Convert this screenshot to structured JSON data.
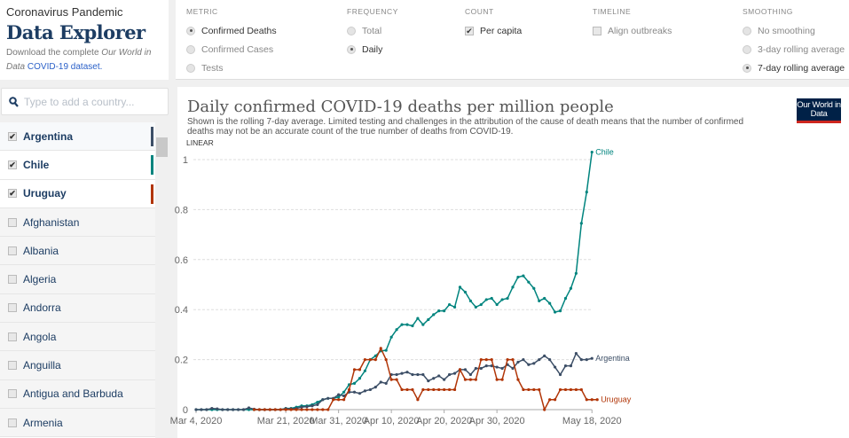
{
  "header": {
    "pretitle": "Coronavirus Pandemic",
    "title": "Data Explorer",
    "download_prefix": "Download the complete ",
    "download_italic": "Our World in Data",
    "download_link": "COVID-19 dataset."
  },
  "controls": {
    "metric": {
      "label": "METRIC",
      "options": [
        "Confirmed Deaths",
        "Confirmed Cases",
        "Tests"
      ],
      "selected": "Confirmed Deaths"
    },
    "frequency": {
      "label": "FREQUENCY",
      "options": [
        "Total",
        "Daily"
      ],
      "selected": "Daily"
    },
    "count": {
      "label": "COUNT",
      "option": "Per capita",
      "checked": true
    },
    "timeline": {
      "label": "TIMELINE",
      "option": "Align outbreaks",
      "checked": false
    },
    "smoothing": {
      "label": "SMOOTHING",
      "options": [
        "No smoothing",
        "3-day rolling average",
        "7-day rolling average"
      ],
      "selected": "7-day rolling average"
    }
  },
  "search": {
    "placeholder": "Type to add a country...",
    "icon": "search-icon"
  },
  "countries": [
    {
      "name": "Argentina",
      "checked": true,
      "color": "#3c4e66"
    },
    {
      "name": "Chile",
      "checked": true,
      "color": "#00847e"
    },
    {
      "name": "Uruguay",
      "checked": true,
      "color": "#b13507"
    },
    {
      "name": "Afghanistan",
      "checked": false
    },
    {
      "name": "Albania",
      "checked": false
    },
    {
      "name": "Algeria",
      "checked": false
    },
    {
      "name": "Andorra",
      "checked": false
    },
    {
      "name": "Angola",
      "checked": false
    },
    {
      "name": "Anguilla",
      "checked": false
    },
    {
      "name": "Antigua and Barbuda",
      "checked": false
    },
    {
      "name": "Armenia",
      "checked": false
    }
  ],
  "chart": {
    "title": "Daily confirmed COVID-19 deaths per million people",
    "subtitle": "Shown is the rolling 7-day average. Limited testing and challenges in the attribution of the cause of death means that the number of confirmed deaths may not be an accurate count of the true number of deaths from COVID-19.",
    "logo": "Our World in Data"
  },
  "chart_data": {
    "type": "line",
    "scale_label": "LINEAR",
    "ylim": [
      0,
      1
    ],
    "grid": "horizontal dashed",
    "yticks": [
      "0",
      "0.2",
      "0.4",
      "0.6",
      "0.8",
      "1"
    ],
    "x_start": "Mar 4, 2020",
    "x_end": "May 18, 2020",
    "xticks": [
      {
        "label": "Mar 4, 2020",
        "day": 0
      },
      {
        "label": "Mar 21, 2020",
        "day": 17
      },
      {
        "label": "Mar 31, 2020",
        "day": 27
      },
      {
        "label": "Apr 10, 2020",
        "day": 37
      },
      {
        "label": "Apr 20, 2020",
        "day": 47
      },
      {
        "label": "Apr 30, 2020",
        "day": 57
      },
      {
        "label": "May 18, 2020",
        "day": 75
      }
    ],
    "series": [
      {
        "name": "Chile",
        "color": "#00847e",
        "start_day": 0,
        "values": [
          0,
          0,
          0,
          0,
          0,
          0,
          0,
          0,
          0,
          0,
          0,
          0,
          0,
          0,
          0,
          0,
          0,
          0.005,
          0.005,
          0.01,
          0.015,
          0.015,
          0.02,
          0.03,
          0.04,
          0.045,
          0.045,
          0.05,
          0.07,
          0.1,
          0.105,
          0.125,
          0.155,
          0.2,
          0.215,
          0.235,
          0.237,
          0.29,
          0.32,
          0.34,
          0.34,
          0.335,
          0.365,
          0.34,
          0.36,
          0.38,
          0.395,
          0.395,
          0.42,
          0.41,
          0.49,
          0.47,
          0.435,
          0.41,
          0.42,
          0.44,
          0.445,
          0.42,
          0.44,
          0.445,
          0.49,
          0.53,
          0.535,
          0.51,
          0.485,
          0.435,
          0.445,
          0.425,
          0.39,
          0.395,
          0.445,
          0.485,
          0.545,
          0.745,
          0.87,
          1.03
        ]
      },
      {
        "name": "Argentina",
        "color": "#3c4e66",
        "start_day": 0,
        "values": [
          0,
          0,
          0,
          0.005,
          0.003,
          0,
          0,
          0,
          0,
          0,
          0.007,
          0.002,
          0,
          0,
          0,
          0,
          0,
          0.004,
          0.003,
          0.005,
          0.01,
          0.012,
          0.015,
          0.02,
          0.04,
          0.045,
          0.045,
          0.06,
          0.055,
          0.07,
          0.07,
          0.065,
          0.075,
          0.08,
          0.09,
          0.11,
          0.105,
          0.14,
          0.14,
          0.145,
          0.15,
          0.14,
          0.14,
          0.14,
          0.115,
          0.125,
          0.135,
          0.12,
          0.14,
          0.145,
          0.16,
          0.16,
          0.14,
          0.165,
          0.165,
          0.175,
          0.175,
          0.17,
          0.165,
          0.18,
          0.165,
          0.19,
          0.2,
          0.18,
          0.185,
          0.2,
          0.215,
          0.2,
          0.17,
          0.14,
          0.175,
          0.175,
          0.225,
          0.2,
          0.2,
          0.205
        ]
      },
      {
        "name": "Uruguay",
        "color": "#b13507",
        "start_day": 11,
        "values": [
          0,
          0,
          0,
          0,
          0,
          0,
          0,
          0,
          0,
          0,
          0,
          0,
          0,
          0,
          0,
          0.04,
          0.04,
          0.04,
          0.08,
          0.16,
          0.16,
          0.2,
          0.2,
          0.2,
          0.245,
          0.2,
          0.12,
          0.12,
          0.08,
          0.08,
          0.08,
          0.04,
          0.08,
          0.08,
          0.08,
          0.08,
          0.08,
          0.08,
          0.08,
          0.16,
          0.12,
          0.12,
          0.12,
          0.2,
          0.2,
          0.2,
          0.12,
          0.12,
          0.2,
          0.2,
          0.12,
          0.08,
          0.08,
          0.08,
          0.08,
          0,
          0.04,
          0.04,
          0.08,
          0.08,
          0.08,
          0.08,
          0.08,
          0.04,
          0.04,
          0.04
        ]
      }
    ]
  }
}
